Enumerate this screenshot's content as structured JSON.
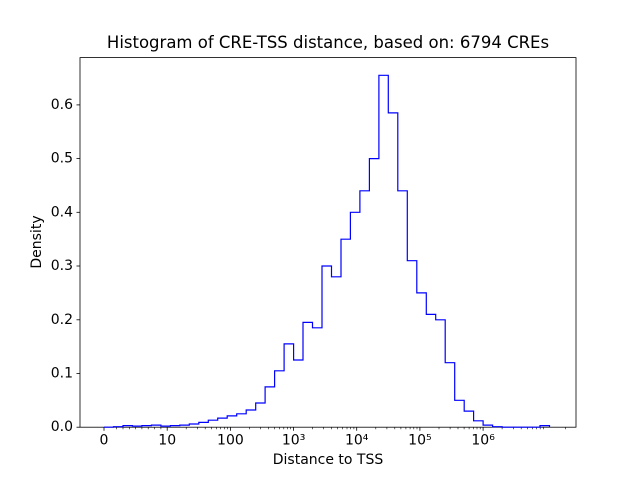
{
  "chart_data": {
    "type": "bar",
    "subtype": "histogram-step-outline",
    "title": "Histogram of CRE-TSS distance, based on: 6794 CREs",
    "xlabel": "Distance to TSS",
    "ylabel": "Density",
    "n_cres": 6794,
    "line_color": "#0000ff",
    "background_color": "#ffffff",
    "grid": false,
    "legend": "none",
    "x_scale": "symlog: position u equals x/10 for 0<=x<=10, and log10(x) for x>=10 (0->u0, 10->u1, 100->u2, 10^6->u6)",
    "x_axis": {
      "u_min": -0.38,
      "u_max": 7.47,
      "ticks": [
        {
          "u": 0,
          "label": "0"
        },
        {
          "u": 1,
          "label": "10"
        },
        {
          "u": 2,
          "label": "100"
        },
        {
          "u": 3,
          "label": "10³"
        },
        {
          "u": 4,
          "label": "10⁴"
        },
        {
          "u": 5,
          "label": "10⁵"
        },
        {
          "u": 6,
          "label": "10⁶"
        }
      ]
    },
    "y_axis": {
      "min": 0,
      "max": 0.688,
      "ticks": [
        {
          "v": 0.0,
          "label": "0.0"
        },
        {
          "v": 0.1,
          "label": "0.1"
        },
        {
          "v": 0.2,
          "label": "0.2"
        },
        {
          "v": 0.3,
          "label": "0.3"
        },
        {
          "v": 0.4,
          "label": "0.4"
        },
        {
          "v": 0.5,
          "label": "0.5"
        },
        {
          "v": 0.6,
          "label": "0.6"
        }
      ]
    },
    "bins": {
      "bin_width_log10": 0.15,
      "edges_u": [
        0.0,
        0.15,
        0.3,
        0.45,
        0.6,
        0.75,
        0.9,
        1.05,
        1.2,
        1.35,
        1.5,
        1.65,
        1.8,
        1.95,
        2.1,
        2.25,
        2.4,
        2.55,
        2.7,
        2.85,
        3.0,
        3.15,
        3.3,
        3.45,
        3.6,
        3.75,
        3.9,
        4.05,
        4.2,
        4.35,
        4.5,
        4.65,
        4.8,
        4.95,
        5.1,
        5.25,
        5.4,
        5.55,
        5.7,
        5.85,
        6.0,
        6.15,
        6.3,
        6.45,
        6.6,
        6.75,
        6.9,
        7.05
      ],
      "densities": [
        0.0,
        0.001,
        0.003,
        0.002,
        0.003,
        0.004,
        0.002,
        0.003,
        0.004,
        0.006,
        0.009,
        0.013,
        0.017,
        0.021,
        0.025,
        0.032,
        0.045,
        0.075,
        0.105,
        0.155,
        0.125,
        0.195,
        0.185,
        0.3,
        0.28,
        0.35,
        0.4,
        0.44,
        0.5,
        0.655,
        0.585,
        0.44,
        0.31,
        0.25,
        0.21,
        0.2,
        0.12,
        0.05,
        0.03,
        0.012,
        0.004,
        0.001,
        0.0,
        0.0,
        0.0,
        0.0,
        0.003
      ]
    },
    "peak": {
      "density": 0.655,
      "at_distance_approx": "2.8e4"
    }
  }
}
